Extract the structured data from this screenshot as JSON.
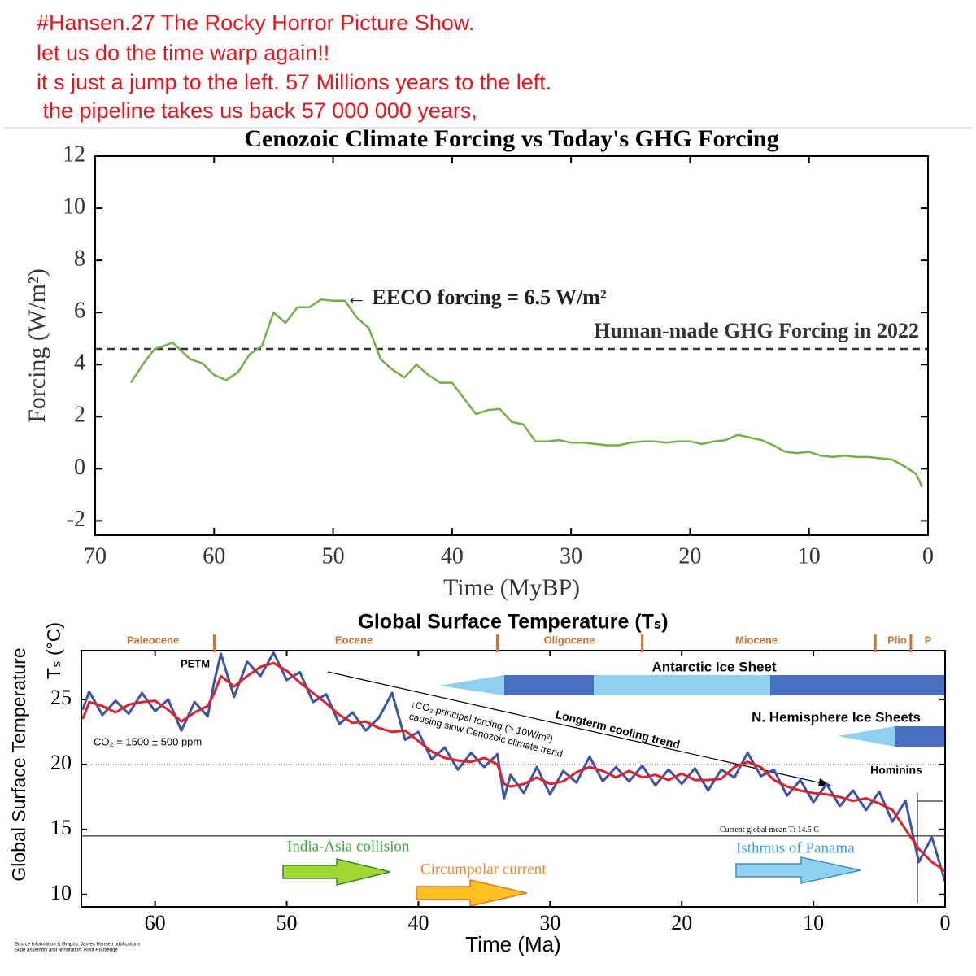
{
  "header": {
    "lines": [
      "#Hansen.27 The Rocky Horror Picture Show.",
      "let us do the time warp again!!",
      "it s just a jump to the left. 57 Millions years to the left.",
      " the pipeline takes us back 57 000 000 years,"
    ]
  },
  "chart_data": [
    {
      "type": "line",
      "title": "Cenozoic Climate Forcing vs Today's GHG Forcing",
      "xlabel": "Time (MyBP)",
      "ylabel": "Forcing (W/m²)",
      "x": [
        67,
        66,
        65,
        64,
        63.5,
        62,
        61,
        60,
        59,
        58,
        57,
        56,
        55,
        54,
        53,
        52,
        51,
        50,
        49,
        48,
        47,
        46,
        45,
        44,
        43,
        42,
        41,
        40,
        39,
        38,
        37,
        36,
        35,
        34,
        33,
        32,
        31,
        30,
        29,
        28,
        27,
        26,
        25,
        24,
        23,
        22,
        21,
        20,
        19,
        18,
        17,
        16,
        15,
        14,
        13,
        12,
        11,
        10,
        9,
        8,
        7,
        6,
        5,
        4,
        3,
        2,
        1,
        0.5
      ],
      "series": [
        {
          "color": "#72b043",
          "values": [
            3.3,
            4.0,
            4.6,
            4.75,
            4.85,
            4.2,
            4.05,
            3.6,
            3.4,
            3.7,
            4.4,
            4.7,
            6.0,
            5.6,
            6.2,
            6.2,
            6.5,
            6.45,
            6.45,
            5.8,
            5.4,
            4.2,
            3.8,
            3.5,
            4.0,
            3.6,
            3.3,
            3.3,
            2.7,
            2.1,
            2.25,
            2.3,
            1.8,
            1.7,
            1.05,
            1.05,
            1.1,
            1.0,
            1.0,
            0.95,
            0.9,
            0.9,
            1.0,
            1.05,
            1.05,
            1.0,
            1.05,
            1.05,
            0.95,
            1.05,
            1.1,
            1.3,
            1.2,
            1.1,
            0.9,
            0.65,
            0.6,
            0.65,
            0.5,
            0.45,
            0.5,
            0.45,
            0.45,
            0.4,
            0.35,
            0.1,
            -0.2,
            -0.7
          ]
        }
      ],
      "xlim": [
        70,
        0
      ],
      "xticks": [
        70,
        60,
        50,
        40,
        30,
        20,
        10,
        0
      ],
      "ylim": [
        -2.55,
        12
      ],
      "yticks": [
        12,
        10,
        8,
        6,
        4,
        2,
        0,
        -2
      ],
      "reference_line": {
        "value": 4.6,
        "label": "Human-made GHG Forcing in 2022",
        "style": "dashed"
      },
      "annotations": [
        "← EECO forcing = 6.5 W/m²"
      ]
    },
    {
      "type": "line",
      "title": "Global Surface Temperature (Tₛ)",
      "xlabel": "Time (Ma)",
      "ylabel": "Global Surface Temperature",
      "ylabel2": "Tₛ (°C)",
      "x": [
        65.5,
        65,
        64,
        63,
        62,
        61,
        60,
        59,
        58,
        57,
        56,
        55.5,
        55,
        54,
        53,
        52,
        51,
        50,
        49,
        48,
        47,
        46,
        45,
        44,
        43,
        42,
        41,
        40,
        39,
        38,
        37,
        36,
        35,
        34,
        33.5,
        33,
        32,
        31,
        30,
        29,
        28,
        27,
        26,
        25,
        24,
        23,
        22,
        21,
        20,
        19,
        18,
        17,
        16,
        15,
        14,
        13,
        12,
        11,
        10,
        9,
        8,
        7,
        6,
        5,
        4,
        3,
        2,
        1,
        0
      ],
      "series": [
        {
          "color": "#3a55a8",
          "values": [
            24.2,
            25.6,
            23.8,
            24.9,
            23.9,
            25.5,
            24.1,
            25.0,
            22.6,
            24.8,
            23.7,
            26.4,
            28.5,
            25.2,
            27.9,
            26.8,
            28.6,
            26.5,
            27.1,
            24.8,
            25.4,
            23.1,
            24.0,
            22.6,
            23.6,
            25.5,
            21.9,
            22.5,
            20.4,
            21.3,
            19.6,
            20.9,
            19.8,
            20.8,
            17.4,
            19.2,
            17.8,
            19.8,
            17.7,
            19.5,
            18.6,
            20.6,
            18.7,
            19.8,
            18.7,
            19.9,
            18.4,
            19.6,
            18.5,
            19.7,
            18.0,
            19.6,
            19.0,
            20.9,
            19.1,
            19.6,
            17.6,
            18.8,
            17.1,
            18.5,
            16.8,
            18.0,
            16.5,
            17.9,
            15.6,
            17.2,
            12.5,
            14.4,
            11.0
          ]
        },
        {
          "color": "#e3202a",
          "values": [
            23.5,
            24.8,
            24.5,
            24.0,
            24.6,
            24.8,
            24.9,
            24.2,
            23.3,
            24.0,
            24.5,
            25.5,
            26.8,
            26.0,
            26.8,
            27.5,
            27.8,
            27.2,
            26.3,
            25.5,
            24.7,
            23.8,
            23.2,
            23.3,
            22.8,
            22.5,
            22.6,
            21.8,
            21.0,
            20.5,
            20.3,
            20.2,
            20.5,
            20.0,
            18.5,
            18.3,
            18.5,
            19.0,
            18.5,
            18.7,
            19.4,
            19.8,
            19.5,
            19.0,
            19.5,
            19.0,
            19.2,
            18.8,
            19.3,
            18.8,
            18.8,
            18.9,
            19.8,
            20.2,
            19.8,
            18.8,
            18.3,
            18.0,
            17.8,
            17.7,
            17.5,
            17.2,
            17.4,
            17.0,
            16.5,
            15.0,
            13.5,
            12.5,
            11.8
          ]
        }
      ],
      "xlim": [
        65.6,
        0
      ],
      "xticks": [
        60,
        50,
        40,
        30,
        20,
        10,
        0
      ],
      "ylim": [
        9.05,
        28.75
      ],
      "yticks": [
        10,
        15,
        20,
        25
      ],
      "reference_line": {
        "value": 14.5,
        "label": "Current global mean T: 14.5 C",
        "style": "solid"
      },
      "dotted_line": 20,
      "epochs": {
        "labels": [
          "Paleocene",
          "Eocene",
          "Oligocene",
          "Miocene",
          "Plio",
          "P"
        ],
        "boundaries": [
          55.5,
          34,
          23,
          5.3,
          2.6
        ]
      },
      "annotations": [
        "PETM",
        "Antarctic Ice Sheet",
        "N. Hemisphere Ice Sheets",
        "Hominins",
        "CO₂ = 1500 ± 500 ppm",
        "↓CO₂ principal forcing (> 10W/m²)",
        "causing slow Cenozoic climate trend",
        "Longterm cooling trend",
        "India-Asia collision",
        "Circumpolar current",
        "Isthmus of Panama"
      ],
      "source": [
        "Source Information & Graphs: James Hansen publications",
        "Slide assembly and annotation: Root Routledge"
      ]
    }
  ]
}
